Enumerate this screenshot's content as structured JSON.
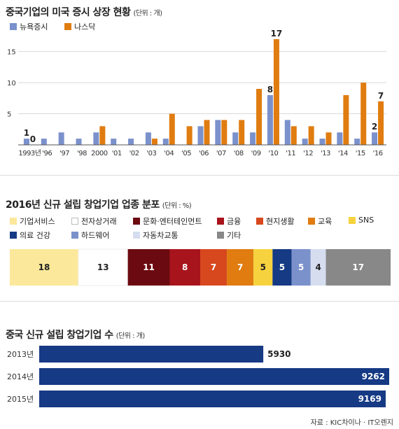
{
  "chart_data": [
    {
      "type": "bar",
      "title": "중국기업의 미국 증시 상장 현황",
      "unit": "(단위 : 개)",
      "categories": [
        "1993년",
        "'96",
        "'97",
        "'98",
        "2000",
        "'01",
        "'02",
        "'03",
        "'04",
        "'05",
        "'06",
        "'07",
        "'08",
        "'09",
        "'10",
        "'11",
        "'12",
        "'13",
        "'14",
        "'15",
        "'16"
      ],
      "series": [
        {
          "name": "뉴욕증시",
          "color": "#7b91cc",
          "values": [
            1,
            1,
            2,
            1,
            2,
            1,
            1,
            2,
            1,
            0,
            3,
            4,
            2,
            2,
            8,
            4,
            1,
            1,
            2,
            1,
            2
          ]
        },
        {
          "name": "나스닥",
          "color": "#e07c10",
          "values": [
            0,
            0,
            0,
            0,
            3,
            0,
            0,
            1,
            5,
            3,
            4,
            4,
            4,
            9,
            17,
            3,
            3,
            2,
            8,
            10,
            7
          ]
        }
      ],
      "ylim": [
        0,
        18
      ],
      "yticks": [
        "5",
        "10",
        "15"
      ],
      "data_labels": {
        "first_ny": "1",
        "first_nas": "0",
        "y2010_ny": "8",
        "y2010_nas": "17",
        "y2016_ny": "2",
        "y2016_nas": "7"
      },
      "legend": "top-left"
    },
    {
      "type": "bar",
      "title": "2016년 신규 설립 창업기업 업종 분포",
      "unit": "(단위 : %)",
      "categories": [
        "기업서비스",
        "전자상거래",
        "문화·엔터테인먼트",
        "금융",
        "현지생활",
        "교육",
        "SNS",
        "의료 건강",
        "하드웨어",
        "자동차교통",
        "기타"
      ],
      "values": [
        18,
        13,
        11,
        8,
        7,
        7,
        5,
        5,
        5,
        4,
        17
      ],
      "colors": [
        "#fbe89a",
        "#ffffff",
        "#6b0a10",
        "#a8141c",
        "#d8481e",
        "#e07c10",
        "#f6d23e",
        "#163a84",
        "#7b91cc",
        "#d5ddef",
        "#888888"
      ],
      "value_colors": [
        "#222",
        "#222",
        "#fff",
        "#fff",
        "#fff",
        "#fff",
        "#222",
        "#fff",
        "#fff",
        "#222",
        "#fff"
      ],
      "legend": "top-left"
    },
    {
      "type": "bar",
      "orientation": "horizontal",
      "title": "중국 신규 설립 창업기업 수",
      "unit": "(단위 : 개)",
      "categories": [
        "2013년",
        "2014년",
        "2015년"
      ],
      "values": [
        5930,
        9262,
        9169
      ],
      "value_labels": [
        "5930",
        "9262",
        "9169"
      ],
      "color": "#163a84",
      "xlim": [
        0,
        9262
      ]
    }
  ],
  "source": "자료 : KIC차이나 · IT오렌지"
}
